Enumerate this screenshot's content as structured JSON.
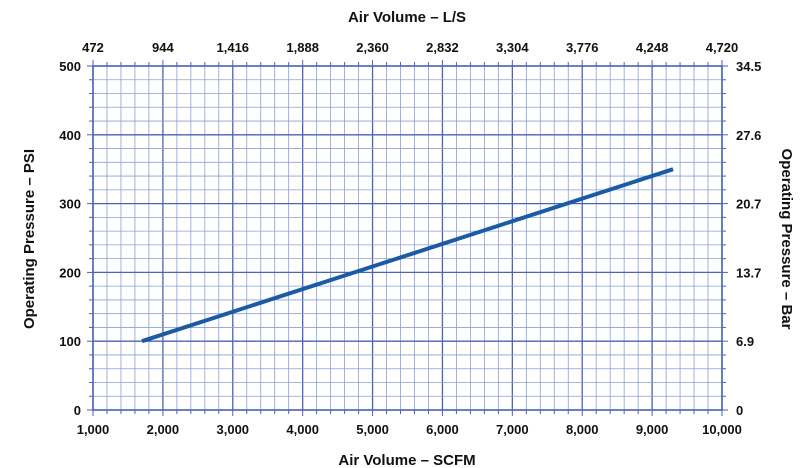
{
  "chart_data": {
    "type": "line",
    "title": "",
    "xlabel": "Air Volume – SCFM",
    "ylabel": "Operating Pressure – PSI",
    "x2label": "Air Volume – L/S",
    "y2label": "Operating Pressure – Bar",
    "xlim": [
      1000,
      10000
    ],
    "ylim": [
      0,
      500
    ],
    "x_ticks": [
      "1,000",
      "2,000",
      "3,000",
      "4,000",
      "5,000",
      "6,000",
      "7,000",
      "8,000",
      "9,000",
      "10,000"
    ],
    "y_ticks": [
      "0",
      "100",
      "200",
      "300",
      "400",
      "500"
    ],
    "x2_ticks": [
      "472",
      "944",
      "1,416",
      "1,888",
      "2,360",
      "2,832",
      "3,304",
      "3,776",
      "4,248",
      "4,720"
    ],
    "y2_ticks": [
      "0",
      "6.9",
      "13.7",
      "20.7",
      "27.6",
      "34.5"
    ],
    "grid": true,
    "colors": {
      "line": "#1a5ba6",
      "grid": "#8a9fd8",
      "frame": "#4a62b8"
    },
    "series": [
      {
        "x": [
          1700,
          9300
        ],
        "y": [
          100,
          350
        ]
      }
    ]
  }
}
